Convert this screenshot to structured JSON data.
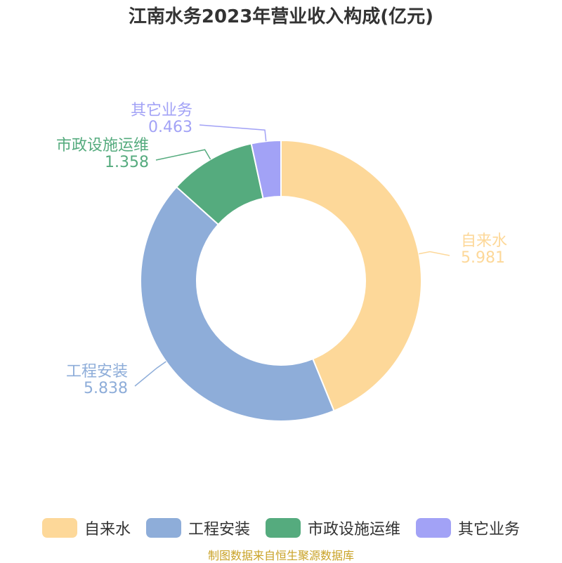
{
  "title": "江南水务2023年营业收入构成(亿元)",
  "source": "制图数据来自恒生聚源数据库",
  "chart_data": {
    "type": "pie",
    "donut": true,
    "title": "江南水务2023年营业收入构成(亿元)",
    "legend_position": "bottom",
    "slices": [
      {
        "label": "自来水",
        "value": 5.981,
        "color": "#FDD899"
      },
      {
        "label": "工程安装",
        "value": 5.838,
        "color": "#8EADD9"
      },
      {
        "label": "市政设施运维",
        "value": 1.358,
        "color": "#55AB7E"
      },
      {
        "label": "其它业务",
        "value": 0.463,
        "color": "#A2A2F6"
      }
    ]
  }
}
